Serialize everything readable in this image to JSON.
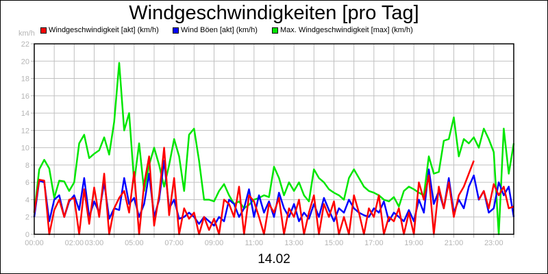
{
  "title": "Windgeschwindigkeiten [pro Tag]",
  "date_label": "14.02",
  "legend": [
    {
      "label": "Windgeschwindigkeit [akt] (km/h)",
      "color": "#ff0000",
      "x": 59
    },
    {
      "label": "Wind Böen [akt] (km/h)",
      "color": "#0000ff",
      "x": 252
    },
    {
      "label": "Max. Windgeschwindigkeit [max] (km/h)",
      "color": "#00e600",
      "x": 397
    }
  ],
  "y_unit": "km/h",
  "chart_data": {
    "type": "line",
    "title": "Windgeschwindigkeiten [pro Tag]",
    "subtitle": "14.02",
    "xlabel": "",
    "ylabel": "km/h",
    "ylim": [
      0,
      22
    ],
    "xlim_hours": [
      0,
      24
    ],
    "grid": true,
    "legend_position": "top",
    "y_ticks": [
      0,
      2,
      4,
      6,
      8,
      10,
      12,
      14,
      16,
      18,
      20,
      22
    ],
    "x_tick_labels": [
      {
        "hour": 0,
        "label": "00:00"
      },
      {
        "hour": 2,
        "label": "02:00"
      },
      {
        "hour": 3,
        "label": "03:00"
      },
      {
        "hour": 5,
        "label": "05:00"
      },
      {
        "hour": 7,
        "label": "07:00"
      },
      {
        "hour": 9,
        "label": "09:00"
      },
      {
        "hour": 11,
        "label": "11:00"
      },
      {
        "hour": 13,
        "label": "13:00"
      },
      {
        "hour": 15,
        "label": "15:00"
      },
      {
        "hour": 17,
        "label": "17:00"
      },
      {
        "hour": 19,
        "label": "19:00"
      },
      {
        "hour": 21,
        "label": "21:00"
      },
      {
        "hour": 23,
        "label": "23:00"
      }
    ],
    "x_step_minutes": 15,
    "series": [
      {
        "name": "Max. Windgeschwindigkeit [max] (km/h)",
        "color": "#00e600",
        "values": [
          2.5,
          7.5,
          8.6,
          7.6,
          4.2,
          6.2,
          6.1,
          5.0,
          6.0,
          10.5,
          11.5,
          8.8,
          9.3,
          9.7,
          11.2,
          9.2,
          13.0,
          19.8,
          12.0,
          14.0,
          6.0,
          10.5,
          5.0,
          8.0,
          10.0,
          8.0,
          5.5,
          8.0,
          11.0,
          9.0,
          5.0,
          11.5,
          12.2,
          8.5,
          4.0,
          4.0,
          3.8,
          5.0,
          5.8,
          4.5,
          3.5,
          3.8,
          3.0,
          3.4,
          4.0,
          4.2,
          4.5,
          4.3,
          7.8,
          6.5,
          4.5,
          6.0,
          5.0,
          6.0,
          4.5,
          3.8,
          7.5,
          6.5,
          6.0,
          5.2,
          4.8,
          4.5,
          4.0,
          6.5,
          7.5,
          6.5,
          5.5,
          5.0,
          4.8,
          4.5,
          4.0,
          3.8,
          4.3,
          3.2,
          5.0,
          5.5,
          5.2,
          4.8,
          4.5,
          9.0,
          7.0,
          7.2,
          10.8,
          11.0,
          13.5,
          9.0,
          11.0,
          10.5,
          11.2,
          10.0,
          12.2,
          11.0,
          9.5,
          0.0,
          12.2,
          7.0,
          10.5
        ],
        "gaps": []
      },
      {
        "name": "Wind Böen [akt] (km/h)",
        "color": "#0000ff",
        "values": [
          2.0,
          6.2,
          6.0,
          1.5,
          4.0,
          4.5,
          2.0,
          3.8,
          4.5,
          2.8,
          6.5,
          2.0,
          3.8,
          2.5,
          6.0,
          1.8,
          3.0,
          2.8,
          6.5,
          3.5,
          4.2,
          2.0,
          3.5,
          7.0,
          2.0,
          4.0,
          8.5,
          3.0,
          4.0,
          1.8,
          2.0,
          2.5,
          2.0,
          1.2,
          2.0,
          1.5,
          1.0,
          2.0,
          1.5,
          4.0,
          3.5,
          2.0,
          3.0,
          5.2,
          2.0,
          4.5,
          2.5,
          3.8,
          2.0,
          4.8,
          3.0,
          2.0,
          3.5,
          1.5,
          2.5,
          1.8,
          3.5,
          2.0,
          4.2,
          2.8,
          1.5,
          3.0,
          2.5,
          4.0,
          3.0,
          2.5,
          2.2,
          2.0,
          3.0,
          2.5,
          3.8,
          1.5,
          2.5,
          2.0,
          1.5,
          2.8,
          1.5,
          4.0,
          2.5,
          7.5,
          3.5,
          5.0,
          3.0,
          6.5,
          2.5,
          4.0,
          3.0,
          5.5,
          6.8,
          4.0,
          5.0,
          2.5,
          3.0,
          6.0,
          4.5,
          5.5,
          2.0
        ],
        "gaps": []
      },
      {
        "name": "Windgeschwindigkeit [akt] (km/h)",
        "color": "#ff0000",
        "values": [
          2.5,
          6.3,
          6.2,
          0.0,
          2.8,
          4.0,
          2.0,
          4.0,
          4.2,
          0.0,
          5.2,
          1.2,
          5.4,
          2.0,
          7.0,
          0.0,
          3.0,
          4.2,
          5.0,
          2.5,
          7.2,
          0.0,
          5.8,
          9.0,
          1.0,
          4.5,
          10.0,
          2.2,
          6.5,
          0.0,
          3.0,
          1.8,
          2.5,
          0.0,
          2.0,
          0.5,
          1.8,
          0.0,
          4.0,
          3.5,
          2.0,
          5.5,
          0.0,
          4.5,
          3.8,
          2.0,
          0.0,
          3.5,
          2.5,
          4.2,
          0.0,
          3.0,
          2.0,
          4.0,
          0.0,
          2.5,
          4.5,
          0.0,
          3.5,
          2.0,
          3.8,
          0.0,
          2.0,
          0.0,
          4.5,
          2.5,
          0.0,
          3.0,
          2.0,
          4.5,
          0.0,
          2.0,
          1.5,
          3.0,
          0.0,
          2.5,
          0.0,
          6.0,
          4.0,
          6.8,
          0.0,
          5.5,
          3.0,
          6.0,
          2.0,
          4.5,
          5.5,
          7.0,
          8.5,
          4.0,
          5.0,
          3.0,
          5.8,
          4.5,
          5.5,
          3.0,
          3.2
        ],
        "gaps": [
          [
            88,
            89
          ]
        ]
      }
    ]
  }
}
